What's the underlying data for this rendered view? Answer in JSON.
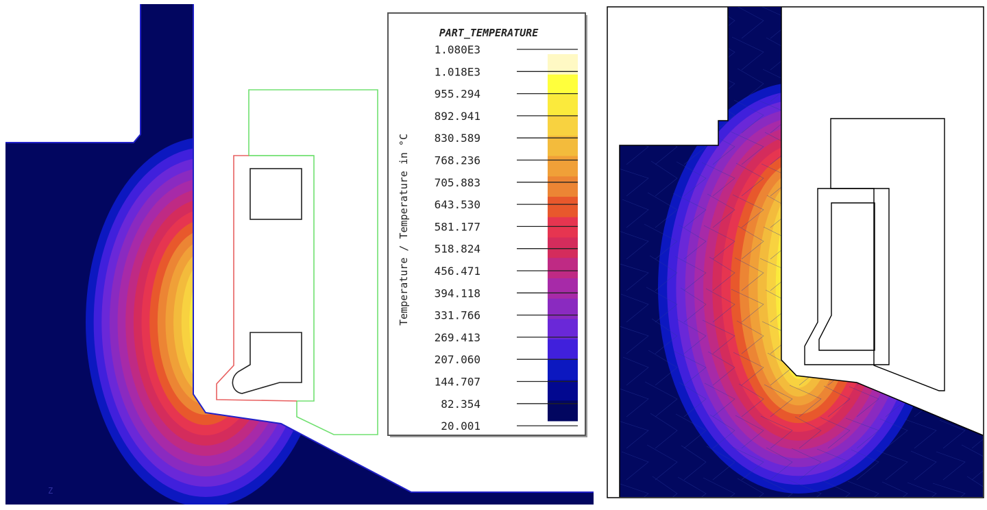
{
  "legend": {
    "title": "PART_TEMPERATURE",
    "axis_label": "Temperature / Temperature in °C",
    "values": [
      "1.080E3",
      "1.018E3",
      "955.294",
      "892.941",
      "830.589",
      "768.236",
      "705.883",
      "643.530",
      "581.177",
      "518.824",
      "456.471",
      "394.118",
      "331.766",
      "269.413",
      "207.060",
      "144.707",
      "82.354",
      "20.001"
    ]
  },
  "palette": [
    "#fff9c4",
    "#ffff3c",
    "#fbea3c",
    "#f8d240",
    "#f3bb3c",
    "#f0a038",
    "#ec8534",
    "#e8582c",
    "#e63550",
    "#d42c5c",
    "#bf2a84",
    "#a72aa8",
    "#8a2ac0",
    "#6a28d8",
    "#4020dc",
    "#0c18c0",
    "#020890",
    "#020660"
  ],
  "axis_marker": "Z"
}
